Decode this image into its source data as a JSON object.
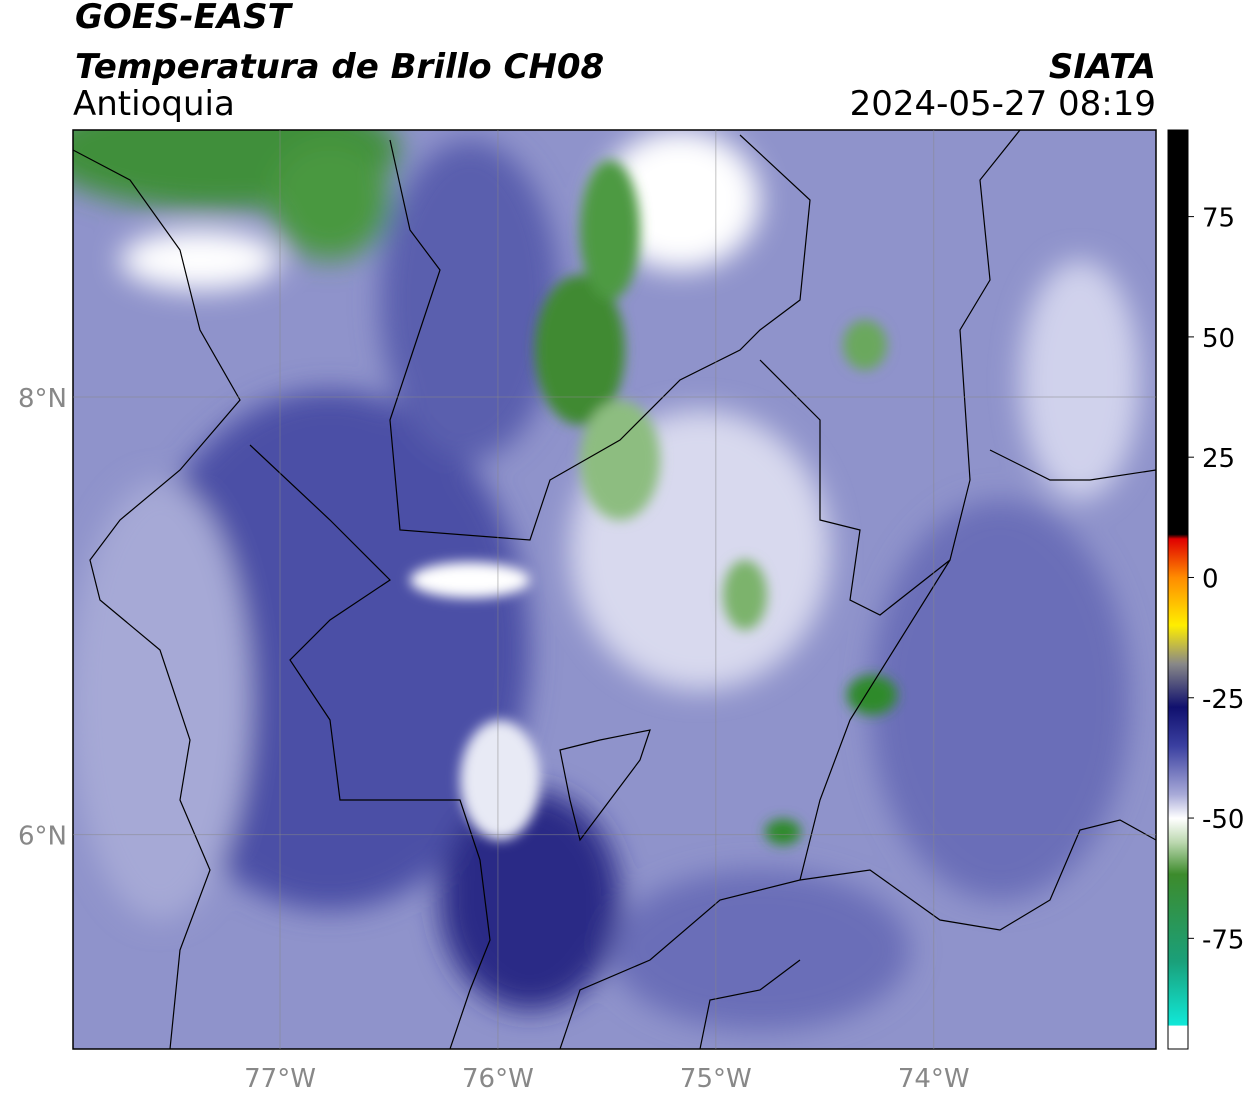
{
  "header": {
    "title": "GOES-EAST",
    "subtitle": "Temperatura de Brillo CH08",
    "region": "Antioquia",
    "source": "SIATA",
    "datetime": "2024-05-27 08:19"
  },
  "map": {
    "xlim": [
      -77.95,
      -72.98
    ],
    "ylim": [
      5.02,
      9.22
    ],
    "xticks": [
      {
        "value": -77,
        "label": "77°W"
      },
      {
        "value": -76,
        "label": "76°W"
      },
      {
        "value": -75,
        "label": "75°W"
      },
      {
        "value": -74,
        "label": "74°W"
      }
    ],
    "yticks": [
      {
        "value": 8,
        "label": "8°N"
      },
      {
        "value": 6,
        "label": "6°N"
      }
    ],
    "grid": true
  },
  "colorbar": {
    "lim": [
      -98,
      93
    ],
    "ticks": [
      75,
      50,
      25,
      0,
      -25,
      -50,
      -75
    ]
  }
}
